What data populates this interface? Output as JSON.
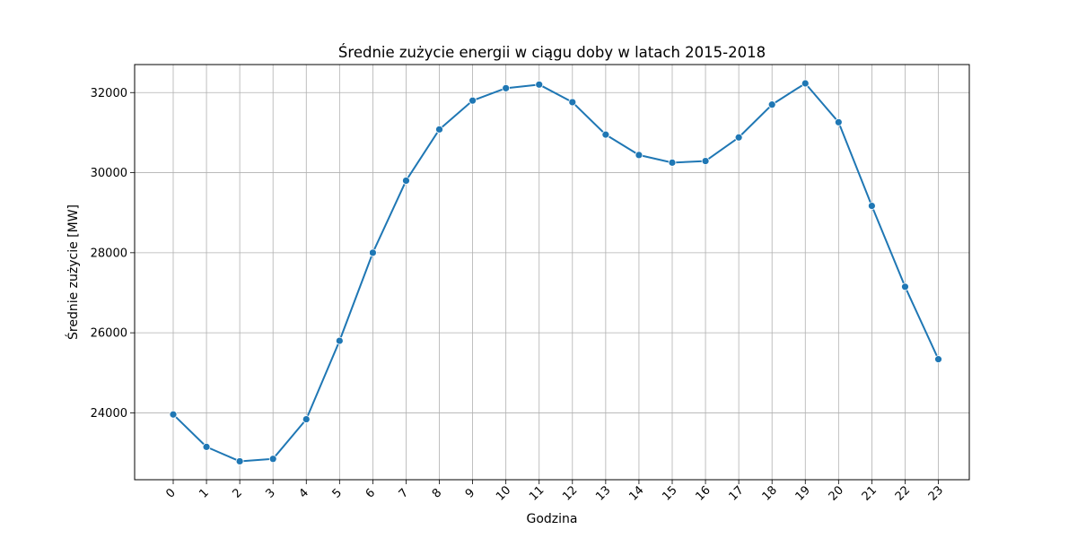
{
  "chart_data": {
    "type": "line",
    "title": "Średnie zużycie energii w ciągu doby w latach 2015-2018",
    "xlabel": "Godzina",
    "ylabel": "Średnie zużycie [MW]",
    "x": [
      0,
      1,
      2,
      3,
      4,
      5,
      6,
      7,
      8,
      9,
      10,
      11,
      12,
      13,
      14,
      15,
      16,
      17,
      18,
      19,
      20,
      21,
      22,
      23
    ],
    "x_tick_labels": [
      "0",
      "1",
      "2",
      "3",
      "4",
      "5",
      "6",
      "7",
      "8",
      "9",
      "10",
      "11",
      "12",
      "13",
      "14",
      "15",
      "16",
      "17",
      "18",
      "19",
      "20",
      "21",
      "22",
      "23"
    ],
    "y_ticks": [
      24000,
      26000,
      28000,
      30000,
      32000
    ],
    "y_tick_labels": [
      "24000",
      "26000",
      "28000",
      "30000",
      "32000"
    ],
    "xlim": [
      -1.16,
      23.93
    ],
    "ylim": [
      22330,
      32700
    ],
    "grid": true,
    "series": [
      {
        "color": "#1f77b4",
        "marker": "circle",
        "values": [
          23960,
          23150,
          22790,
          22850,
          23840,
          25800,
          28000,
          29800,
          31080,
          31800,
          32110,
          32200,
          31760,
          30950,
          30440,
          30250,
          30290,
          30880,
          31700,
          32230,
          31260,
          29170,
          27150,
          25340
        ]
      }
    ]
  }
}
